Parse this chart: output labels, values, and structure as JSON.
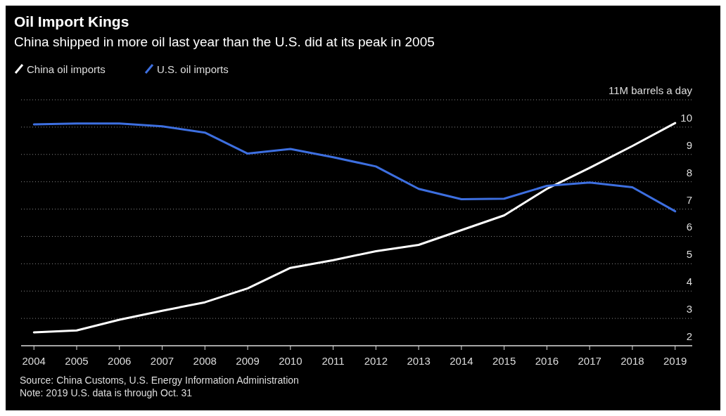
{
  "chart_data": {
    "type": "line",
    "title": "Oil Import Kings",
    "subtitle": "China shipped in more oil last year than the U.S. did at its peak in 2005",
    "x": [
      2004,
      2005,
      2006,
      2007,
      2008,
      2009,
      2010,
      2011,
      2012,
      2013,
      2014,
      2015,
      2016,
      2017,
      2018,
      2019
    ],
    "series": [
      {
        "name": "China oil imports",
        "color": "#ffffff",
        "values": [
          2.49,
          2.56,
          2.95,
          3.28,
          3.59,
          4.1,
          4.85,
          5.13,
          5.46,
          5.69,
          6.23,
          6.77,
          7.74,
          8.51,
          9.31,
          10.15
        ]
      },
      {
        "name": "U.S. oil imports",
        "color": "#3d6fe0",
        "values": [
          10.1,
          10.13,
          10.13,
          10.03,
          9.8,
          9.03,
          9.2,
          8.9,
          8.56,
          7.74,
          7.36,
          7.38,
          7.85,
          7.97,
          7.8,
          6.92
        ]
      }
    ],
    "xlim": [
      2003.7,
      2019.4
    ],
    "xticks": [
      2004,
      2005,
      2006,
      2007,
      2008,
      2009,
      2010,
      2011,
      2012,
      2013,
      2014,
      2015,
      2016,
      2017,
      2018,
      2019
    ],
    "ylim": [
      2,
      11
    ],
    "yticks": [
      2,
      3,
      4,
      5,
      6,
      7,
      8,
      9,
      10,
      {
        "value": 11,
        "label": "11M barrels a day"
      }
    ],
    "grid": "y",
    "legend": "top left",
    "annotations": [
      "Source: China Customs, U.S. Energy Information Administration",
      "Note: 2019 U.S. data is through Oct. 31"
    ]
  }
}
